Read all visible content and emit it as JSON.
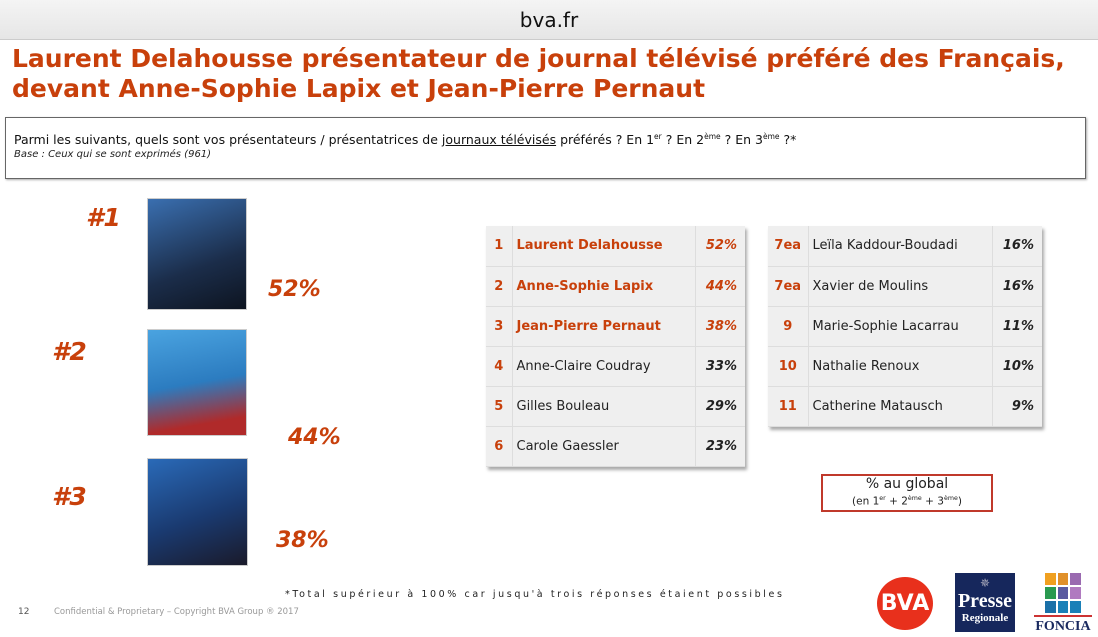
{
  "topbar": {
    "site": "bva.fr"
  },
  "title": "Laurent Delahousse présentateur de journal télévisé préféré des Français, devant Anne-Sophie Lapix et Jean-Pierre Pernaut",
  "question": {
    "before": "Parmi les suivants, quels sont vos présentateurs / présentatrices de ",
    "underlined": "journaux télévisés",
    "after": " préférés ? En 1",
    "sup1": "er",
    "mid1": " ? En 2",
    "sup2": "ème",
    "mid2": " ? En 3",
    "sup3": "ème",
    "end": " ?*",
    "base": "Base : Ceux qui se sont exprimés (961)"
  },
  "podium": [
    {
      "rank": "#1",
      "pct": "52%",
      "name": "Laurent Delahousse"
    },
    {
      "rank": "#2",
      "pct": "44%",
      "name": "Anne-Sophie Lapix"
    },
    {
      "rank": "#3",
      "pct": "38%",
      "name": "Jean-Pierre Pernaut"
    }
  ],
  "table_left": [
    {
      "rank": "1",
      "name": "Laurent Delahousse",
      "pct": "52%"
    },
    {
      "rank": "2",
      "name": "Anne-Sophie Lapix",
      "pct": "44%"
    },
    {
      "rank": "3",
      "name": "Jean-Pierre Pernaut",
      "pct": "38%"
    },
    {
      "rank": "4",
      "name": "Anne-Claire Coudray",
      "pct": "33%"
    },
    {
      "rank": "5",
      "name": "Gilles Bouleau",
      "pct": "29%"
    },
    {
      "rank": "6",
      "name": "Carole Gaessler",
      "pct": "23%"
    }
  ],
  "table_right": [
    {
      "rank": "7ea",
      "name": "Leïla Kaddour-Boudadi",
      "pct": "16%"
    },
    {
      "rank": "7ea",
      "name": "Xavier de Moulins",
      "pct": "16%"
    },
    {
      "rank": "9",
      "name": "Marie-Sophie Lacarrau",
      "pct": "11%"
    },
    {
      "rank": "10",
      "name": "Nathalie Renoux",
      "pct": "10%"
    },
    {
      "rank": "11",
      "name": "Catherine Matausch",
      "pct": "9%"
    }
  ],
  "legend": {
    "main": "% au global",
    "sub_a": "(en 1",
    "sup1": "er",
    "sub_b": " + 2",
    "sup2": "ème",
    "sub_c": " + 3",
    "sup3": "ème",
    "sub_d": ")"
  },
  "footer": {
    "note": "*Total supérieur à 100% car jusqu'à trois réponses étaient possibles",
    "page": "12",
    "copyright": "Confidential & Proprietary – Copyright BVA Group ® 2017"
  },
  "logos": {
    "bva": "BVA",
    "presse_1": "Presse",
    "presse_2": "Regionale",
    "foncia": "FONCIA"
  }
}
